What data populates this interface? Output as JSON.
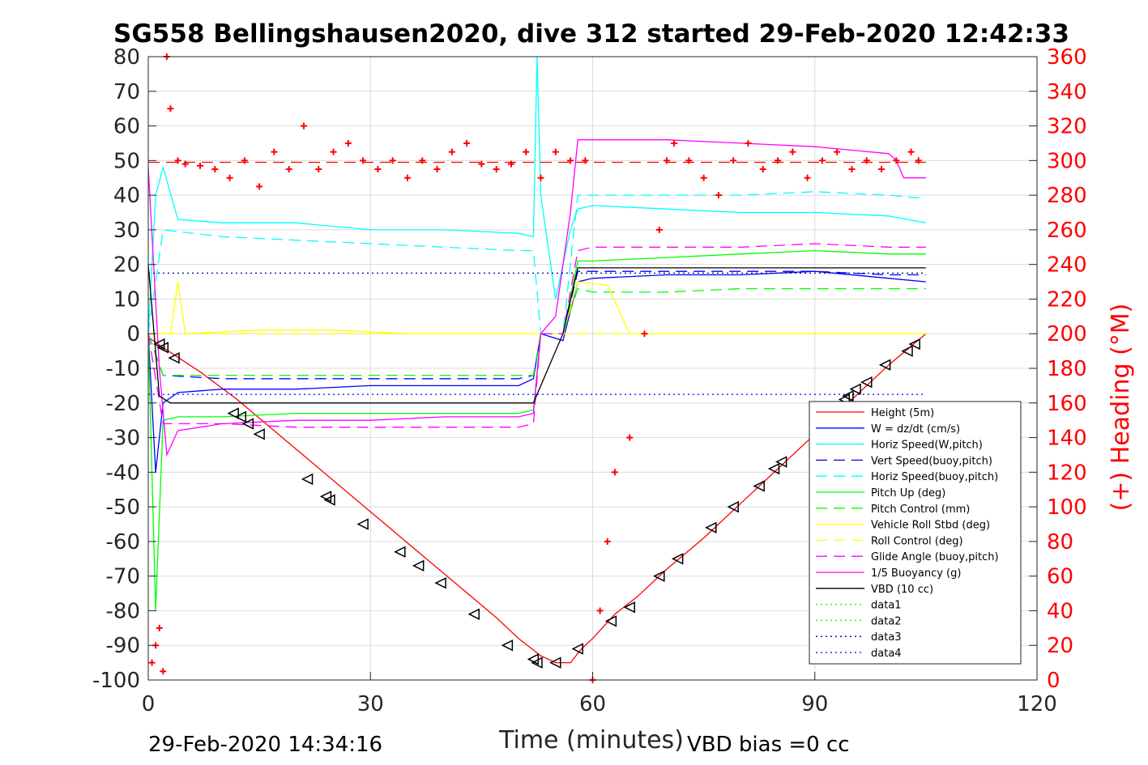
{
  "title": "SG558 Bellingshausen2020, dive 312 started 29-Feb-2020 12:42:33",
  "footer": {
    "left": "29-Feb-2020 14:34:16",
    "right": "VBD bias =0 cc"
  },
  "colors": {
    "red": "#ff0000",
    "blue": "#0000ff",
    "cyan": "#00ffff",
    "darkblue": "#00008b",
    "green": "#00ff00",
    "yellow": "#ffff00",
    "magenta": "#ff00ff",
    "black": "#000000",
    "grid": "#dcdcdc",
    "axis": "#262626"
  },
  "chart_data": {
    "type": "line",
    "title": "SG558 Bellingshausen2020, dive 312 started 29-Feb-2020 12:42:33",
    "xlabel": "Time (minutes)",
    "ylabel": "",
    "y2label": "(+) Heading (°M)",
    "xlim": [
      0,
      120
    ],
    "ylim": [
      -100,
      80
    ],
    "y2lim": [
      0,
      360
    ],
    "xticks": [
      "0",
      "30",
      "60",
      "90",
      "120"
    ],
    "xtick_values": [
      0,
      30,
      60,
      90,
      120
    ],
    "yticks": [
      "80",
      "70",
      "60",
      "50",
      "40",
      "30",
      "20",
      "10",
      "0",
      "-10",
      "-20",
      "-30",
      "-40",
      "-50",
      "-60",
      "-70",
      "-80",
      "-90",
      "-100"
    ],
    "ytick_values": [
      80,
      70,
      60,
      50,
      40,
      30,
      20,
      10,
      0,
      -10,
      -20,
      -30,
      -40,
      -50,
      -60,
      -70,
      -80,
      -90,
      -100
    ],
    "y2ticks": [
      "360",
      "340",
      "320",
      "300",
      "280",
      "260",
      "240",
      "220",
      "200",
      "180",
      "160",
      "140",
      "120",
      "100",
      "80",
      "60",
      "40",
      "20",
      "0"
    ],
    "y2tick_values": [
      360,
      340,
      320,
      300,
      280,
      260,
      240,
      220,
      200,
      180,
      160,
      140,
      120,
      100,
      80,
      60,
      40,
      20,
      0
    ],
    "grid": true,
    "legend_position": "lower-right",
    "legend": [
      {
        "label": "Height (5m)",
        "color": "#ff0000",
        "style": "solid"
      },
      {
        "label": "W = dz/dt (cm/s)",
        "color": "#0000ff",
        "style": "solid"
      },
      {
        "label": "Horiz Speed(W,pitch)",
        "color": "#00ffff",
        "style": "solid"
      },
      {
        "label": "Vert Speed(buoy,pitch)",
        "color": "#0000ff",
        "style": "dashed"
      },
      {
        "label": "Horiz Speed(buoy,pitch)",
        "color": "#00ffff",
        "style": "dashed"
      },
      {
        "label": "Pitch Up (deg)",
        "color": "#00ff00",
        "style": "solid"
      },
      {
        "label": "Pitch Control (mm)",
        "color": "#00ff00",
        "style": "dashed"
      },
      {
        "label": "Vehicle Roll Stbd (deg)",
        "color": "#ffff00",
        "style": "solid"
      },
      {
        "label": "Roll Control (deg)",
        "color": "#ffff00",
        "style": "dashed"
      },
      {
        "label": "Glide Angle (buoy,pitch)",
        "color": "#ff00ff",
        "style": "dashed"
      },
      {
        "label": "1/5 Buoyancy (g)",
        "color": "#ff00ff",
        "style": "solid"
      },
      {
        "label": "VBD (10 cc)",
        "color": "#000000",
        "style": "solid"
      },
      {
        "label": "data1",
        "color": "#00ff00",
        "style": "dotted"
      },
      {
        "label": "data2",
        "color": "#00ff00",
        "style": "dotted"
      },
      {
        "label": "data3",
        "color": "#00008b",
        "style": "dotted"
      },
      {
        "label": "data4",
        "color": "#0000ff",
        "style": "dotted"
      }
    ],
    "series": [
      {
        "name": "Height (5m)",
        "color": "#ff0000",
        "style": "solid",
        "axis": "left",
        "x": [
          0,
          2,
          7,
          12,
          17,
          22,
          27,
          32,
          37,
          42,
          47,
          50,
          53,
          55,
          57,
          58.5,
          60,
          63,
          66,
          70,
          75,
          80,
          85,
          90,
          95,
          100,
          105
        ],
        "y": [
          -1,
          -4,
          -11,
          -19,
          -28,
          -37,
          -46,
          -55,
          -64,
          -73,
          -82,
          -88,
          -93,
          -95,
          -95,
          -91,
          -88,
          -81,
          -76,
          -68,
          -59,
          -49,
          -39,
          -29,
          -19,
          -9,
          0
        ]
      },
      {
        "name": "Height markers",
        "color": "#000000",
        "style": "triangle-markers",
        "axis": "left",
        "x": [
          1.5,
          2,
          3.5,
          11.5,
          12.5,
          13.5,
          15,
          21.5,
          24,
          24.5,
          29,
          34,
          36.5,
          39.5,
          44,
          48.5,
          52,
          52.5,
          55,
          58,
          62.5,
          65,
          69,
          71.5,
          76,
          79,
          82.5,
          84.5,
          85.5,
          94,
          94.5,
          95.5,
          97,
          99.5,
          102.5,
          103.5
        ],
        "y": [
          -3,
          -4,
          -7,
          -23,
          -24,
          -26,
          -29,
          -42,
          -47,
          -48,
          -55,
          -63,
          -67,
          -72,
          -81,
          -90,
          -94,
          -95,
          -95,
          -91,
          -83,
          -79,
          -70,
          -65,
          -56,
          -50,
          -44,
          -39,
          -37,
          -19,
          -18,
          -16,
          -14,
          -9,
          -5,
          -3
        ]
      },
      {
        "name": "W = dz/dt (cm/s)",
        "color": "#0000ff",
        "style": "solid",
        "axis": "left",
        "x": [
          0,
          1,
          2,
          4,
          10,
          20,
          30,
          40,
          50,
          52,
          53,
          56,
          58,
          60,
          70,
          80,
          90,
          100,
          105
        ],
        "y": [
          0,
          -40,
          -20,
          -17,
          -16,
          -16,
          -15,
          -15,
          -15,
          -13,
          0,
          -2,
          15,
          16,
          17,
          17,
          18,
          16,
          15
        ]
      },
      {
        "name": "Horiz Speed(W,pitch)",
        "color": "#00ffff",
        "style": "solid",
        "axis": "left",
        "x": [
          0,
          1,
          2,
          4,
          10,
          20,
          30,
          40,
          50,
          52,
          52.5,
          53,
          55,
          57,
          58,
          60,
          70,
          80,
          90,
          100,
          105
        ],
        "y": [
          0,
          40,
          48,
          33,
          32,
          32,
          30,
          30,
          29,
          28,
          80,
          40,
          10,
          30,
          36,
          37,
          36,
          35,
          35,
          34,
          32
        ]
      },
      {
        "name": "Vert Speed(buoy,pitch)",
        "color": "#0000ff",
        "style": "dashed",
        "axis": "left",
        "x": [
          0,
          2,
          10,
          20,
          30,
          40,
          50,
          52,
          53,
          56,
          58,
          60,
          70,
          80,
          90,
          100,
          105
        ],
        "y": [
          0,
          -12,
          -13,
          -13,
          -13,
          -13,
          -13,
          -12,
          0,
          0,
          18,
          18,
          18,
          18,
          18,
          17,
          17
        ]
      },
      {
        "name": "Horiz Speed(buoy,pitch)",
        "color": "#00ffff",
        "style": "dashed",
        "axis": "left",
        "x": [
          0,
          2,
          10,
          20,
          30,
          40,
          50,
          52,
          53,
          56,
          58,
          60,
          70,
          80,
          90,
          100,
          105
        ],
        "y": [
          0,
          30,
          28,
          27,
          26,
          25,
          24,
          24,
          0,
          0,
          40,
          40,
          40,
          40,
          41,
          40,
          39
        ]
      },
      {
        "name": "Pitch Up (deg)",
        "color": "#00ff00",
        "style": "solid",
        "axis": "left",
        "x": [
          0,
          1,
          2,
          4,
          10,
          20,
          30,
          40,
          50,
          52,
          53,
          56,
          58,
          60,
          70,
          80,
          90,
          100,
          105
        ],
        "y": [
          0,
          -80,
          -25,
          -24,
          -24,
          -23,
          -23,
          -23,
          -23,
          -22,
          0,
          0,
          21,
          21,
          22,
          23,
          24,
          23,
          23
        ]
      },
      {
        "name": "Pitch Control (mm)",
        "color": "#00ff00",
        "style": "dashed",
        "axis": "left",
        "x": [
          0,
          2,
          10,
          20,
          30,
          40,
          50,
          52,
          53,
          56,
          58,
          60,
          70,
          80,
          90,
          100,
          105
        ],
        "y": [
          0,
          -12,
          -12,
          -12,
          -12,
          -12,
          -12,
          -12,
          0,
          0,
          13,
          12,
          12,
          13,
          13,
          13,
          13
        ]
      },
      {
        "name": "Vehicle Roll Stbd (deg)",
        "color": "#ffff00",
        "style": "solid",
        "axis": "left",
        "x": [
          0,
          3,
          4,
          5,
          15,
          25,
          35,
          45,
          50,
          52,
          53,
          56,
          58,
          62,
          65,
          75,
          85,
          95,
          105
        ],
        "y": [
          0,
          0,
          15,
          0,
          1,
          1,
          0,
          0,
          0,
          0,
          0,
          0,
          15,
          14,
          0,
          0,
          0,
          0,
          0
        ]
      },
      {
        "name": "Roll Control (deg)",
        "color": "#ffff00",
        "style": "dashed",
        "axis": "left",
        "x": [
          0,
          10,
          20,
          30,
          40,
          50,
          60,
          70,
          80,
          90,
          100,
          105
        ],
        "y": [
          0,
          0,
          0,
          0,
          0,
          0,
          0,
          0,
          0,
          0,
          0,
          0
        ]
      },
      {
        "name": "Glide Angle (buoy,pitch)",
        "color": "#ff00ff",
        "style": "dashed",
        "axis": "left",
        "x": [
          0,
          2,
          10,
          20,
          30,
          40,
          50,
          52,
          53,
          56,
          58,
          60,
          70,
          80,
          90,
          100,
          105
        ],
        "y": [
          0,
          -26,
          -26,
          -27,
          -27,
          -27,
          -27,
          -26,
          0,
          0,
          24,
          25,
          25,
          25,
          26,
          25,
          25
        ]
      },
      {
        "name": "1/5 Buoyancy (g)",
        "color": "#ff00ff",
        "style": "solid",
        "axis": "left",
        "x": [
          0,
          1.5,
          2.5,
          4,
          10,
          20,
          30,
          40,
          50,
          52,
          53,
          55,
          57,
          58,
          60,
          70,
          80,
          90,
          95,
          100,
          101,
          102,
          105
        ],
        "y": [
          48,
          -10,
          -35,
          -28,
          -26,
          -25,
          -25,
          -24,
          -24,
          -23,
          0,
          5,
          35,
          56,
          56,
          56,
          55,
          54,
          53,
          52,
          50,
          45,
          45
        ]
      },
      {
        "name": "VBD (10 cc)",
        "color": "#000000",
        "style": "solid",
        "axis": "left",
        "x": [
          0,
          1.5,
          3,
          10,
          20,
          30,
          40,
          50,
          52,
          56,
          58,
          60,
          70,
          80,
          90,
          100,
          105
        ],
        "y": [
          20,
          -18,
          -20,
          -20,
          -20,
          -20,
          -20,
          -20,
          -20,
          0,
          19,
          19,
          19,
          19,
          19,
          19,
          19
        ]
      },
      {
        "name": "data3",
        "color": "#00008b",
        "style": "dotted",
        "axis": "left",
        "x": [
          0,
          105
        ],
        "y": [
          17.5,
          17.5
        ]
      },
      {
        "name": "data4",
        "color": "#0000ff",
        "style": "dotted",
        "axis": "left",
        "x": [
          0,
          105
        ],
        "y": [
          -17.5,
          -17.5
        ]
      },
      {
        "name": "(+) Heading (°M)",
        "color": "#ff0000",
        "style": "plus-markers",
        "axis": "right",
        "x": [
          0.5,
          1,
          1.5,
          2,
          2.5,
          3,
          4,
          5,
          7,
          9,
          11,
          13,
          15,
          17,
          19,
          21,
          23,
          25,
          27,
          29,
          31,
          33,
          35,
          37,
          39,
          41,
          43,
          45,
          47,
          49,
          51,
          53,
          55,
          57,
          59,
          60,
          61,
          62,
          63,
          65,
          67,
          69,
          70,
          71,
          73,
          75,
          77,
          79,
          81,
          83,
          85,
          87,
          89,
          91,
          93,
          95,
          97,
          99,
          101,
          103,
          104
        ],
        "y": [
          10,
          20,
          30,
          5,
          360,
          330,
          300,
          298,
          297,
          295,
          290,
          300,
          285,
          305,
          295,
          320,
          295,
          305,
          310,
          300,
          295,
          300,
          290,
          300,
          295,
          305,
          310,
          298,
          295,
          298,
          305,
          290,
          305,
          300,
          300,
          0,
          40,
          80,
          120,
          140,
          200,
          260,
          300,
          310,
          300,
          290,
          280,
          300,
          310,
          295,
          300,
          305,
          290,
          300,
          305,
          295,
          300,
          295,
          300,
          305,
          300
        ]
      },
      {
        "name": "Heading reference",
        "color": "#ff0000",
        "style": "dashed",
        "axis": "right",
        "x": [
          0,
          105
        ],
        "y": [
          299,
          299
        ]
      }
    ]
  }
}
